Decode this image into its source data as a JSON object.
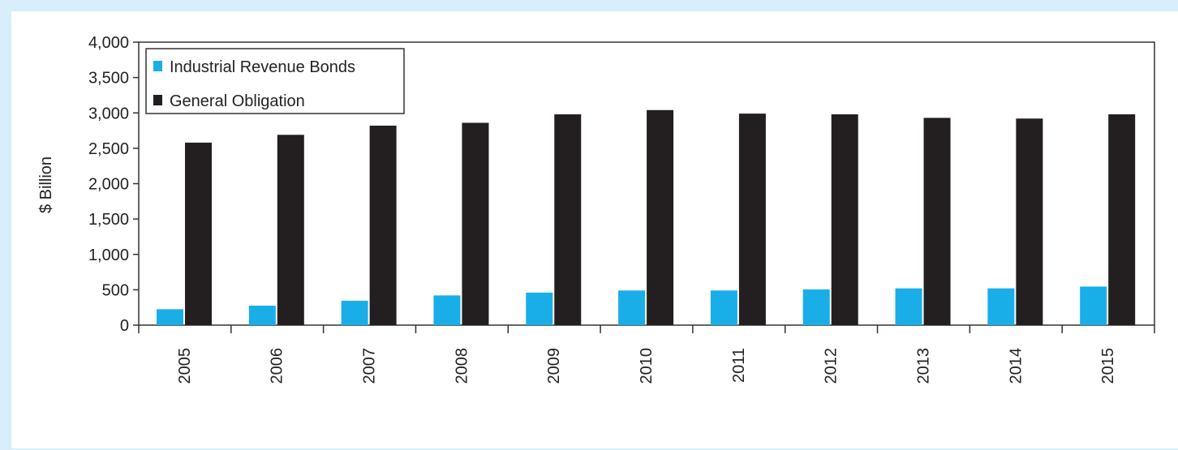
{
  "chart_data": {
    "type": "bar",
    "title": "",
    "xlabel": "",
    "ylabel": "$ Billion",
    "ylim": [
      0,
      4000
    ],
    "yticks": [
      0,
      500,
      1000,
      1500,
      2000,
      2500,
      3000,
      3500,
      4000
    ],
    "ytick_labels": [
      "0",
      "500",
      "1,000",
      "1,500",
      "2,000",
      "2,500",
      "3,000",
      "3,500",
      "4,000"
    ],
    "categories": [
      "2005",
      "2006",
      "2007",
      "2008",
      "2009",
      "2010",
      "2011",
      "2012",
      "2013",
      "2014",
      "2015"
    ],
    "legend_position": "top-left",
    "grid": false,
    "series": [
      {
        "name": "Industrial Revenue Bonds",
        "color": "#19aee8",
        "values": [
          225,
          275,
          345,
          420,
          460,
          490,
          490,
          505,
          520,
          520,
          545
        ]
      },
      {
        "name": "General Obligation",
        "color": "#231f20",
        "values": [
          2580,
          2690,
          2820,
          2860,
          2980,
          3040,
          2990,
          2980,
          2930,
          2920,
          2980
        ]
      }
    ]
  }
}
